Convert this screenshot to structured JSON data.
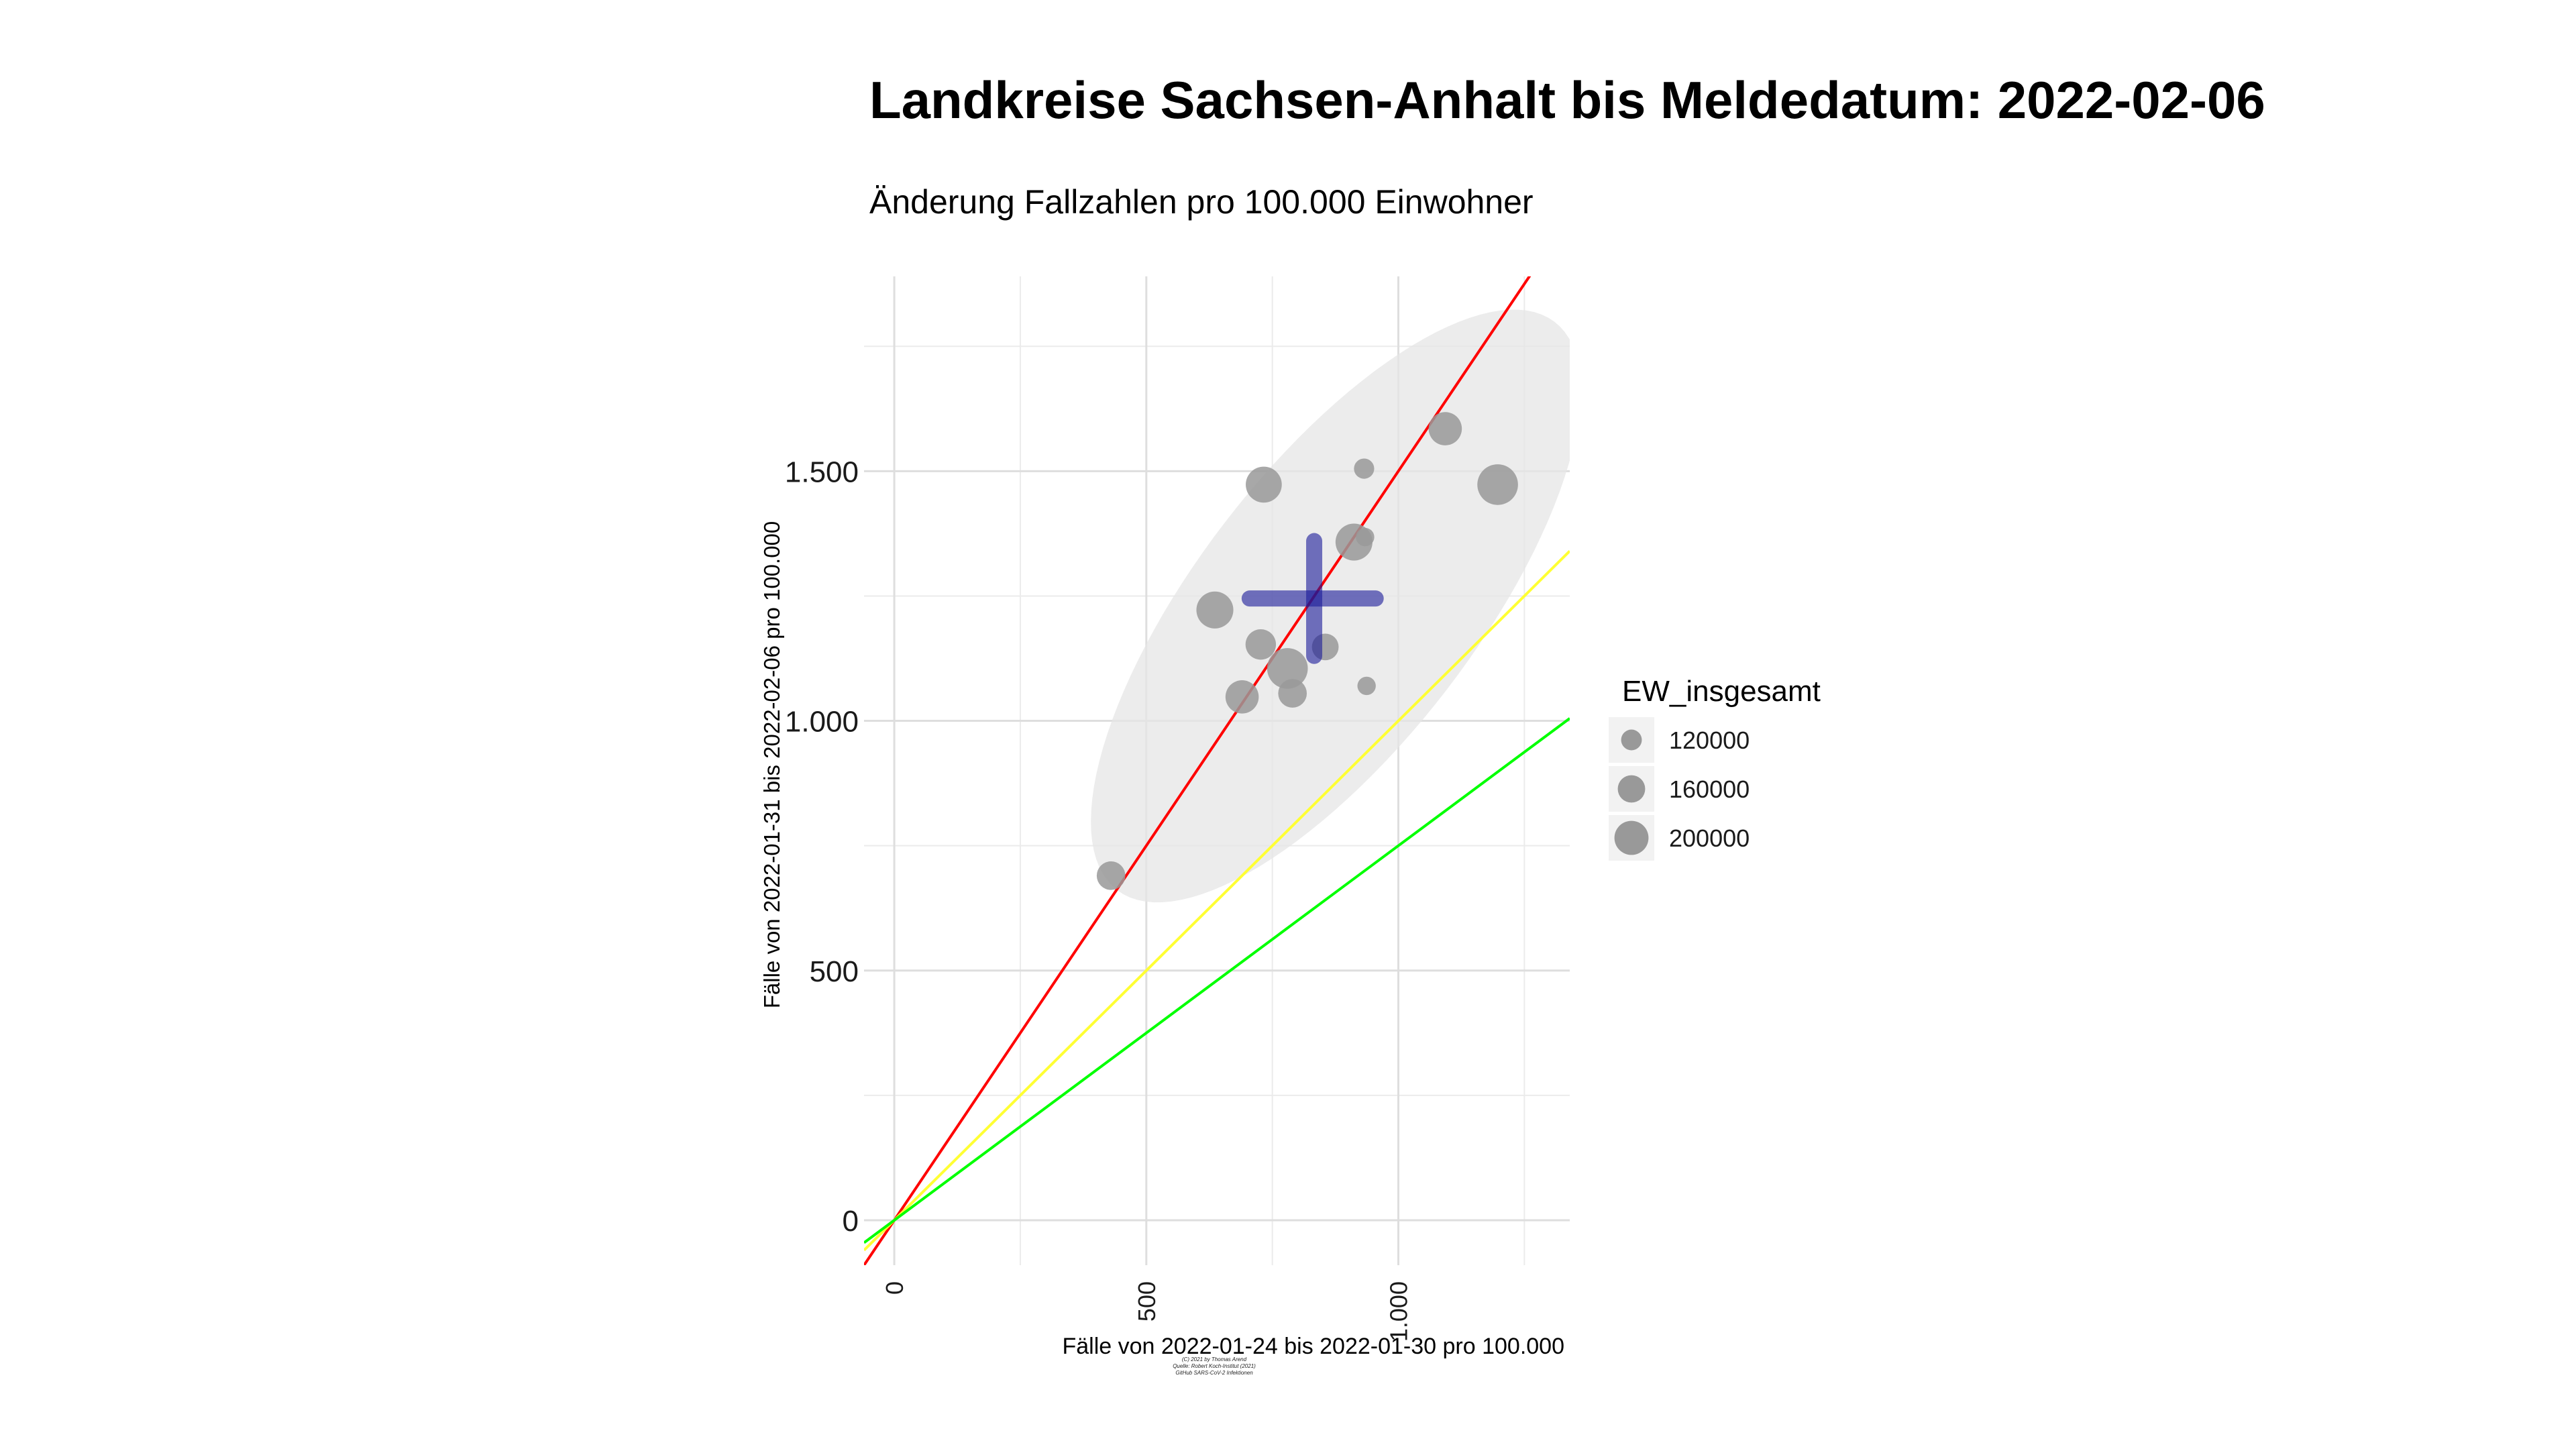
{
  "chart_data": {
    "type": "scatter",
    "title": "Landkreise Sachsen-Anhalt bis Meldedatum: 2022-02-06",
    "subtitle": "Änderung Fallzahlen pro 100.000 Einwohner",
    "xlabel": "Fälle von 2022-01-24 bis 2022-01-30 pro 100.000",
    "ylabel": "Fälle von 2022-01-31 bis 2022-02-06 pro 100.000",
    "xlim": [
      -60,
      1340
    ],
    "ylim": [
      -90,
      1890
    ],
    "x_ticks": [
      {
        "value": 0,
        "label": "0"
      },
      {
        "value": 500,
        "label": "500"
      },
      {
        "value": 1000,
        "label": "1.000"
      }
    ],
    "y_ticks": [
      {
        "value": 0,
        "label": "0"
      },
      {
        "value": 500,
        "label": "500"
      },
      {
        "value": 1000,
        "label": "1.000"
      },
      {
        "value": 1500,
        "label": "1.500"
      }
    ],
    "grid": true,
    "points": [
      {
        "x": 430,
        "y": 690,
        "ew": 150000
      },
      {
        "x": 636,
        "y": 1222,
        "ew": 195000
      },
      {
        "x": 690,
        "y": 1048,
        "ew": 175000
      },
      {
        "x": 727,
        "y": 1153,
        "ew": 160000
      },
      {
        "x": 733,
        "y": 1473,
        "ew": 190000
      },
      {
        "x": 780,
        "y": 1105,
        "ew": 215000
      },
      {
        "x": 790,
        "y": 1055,
        "ew": 150000
      },
      {
        "x": 855,
        "y": 1148,
        "ew": 140000
      },
      {
        "x": 912,
        "y": 1358,
        "ew": 195000
      },
      {
        "x": 934,
        "y": 1368,
        "ew": 95000
      },
      {
        "x": 932,
        "y": 1505,
        "ew": 105000
      },
      {
        "x": 937,
        "y": 1070,
        "ew": 95000
      },
      {
        "x": 1093,
        "y": 1585,
        "ew": 175000
      },
      {
        "x": 1197,
        "y": 1473,
        "ew": 215000
      }
    ],
    "mean_cross": {
      "x": 833,
      "y": 1245,
      "x_range": [
        705,
        955
      ],
      "y_range": [
        1130,
        1360
      ],
      "color": "#1A1A99"
    },
    "ellipse": {
      "center_x": 876,
      "center_y": 1230,
      "color": "#E5E5E5"
    },
    "reference_lines": [
      {
        "slope": 1.5,
        "color": "#FF0000"
      },
      {
        "slope": 1.0,
        "color": "#FFFF33"
      },
      {
        "slope": 0.75,
        "color": "#00FF00"
      }
    ],
    "point_color": "#999999",
    "legend": {
      "title": "EW_insgesamt",
      "placement": "right",
      "entries": [
        {
          "label": "120000",
          "value": 120000
        },
        {
          "label": "160000",
          "value": 160000
        },
        {
          "label": "200000",
          "value": 200000
        }
      ]
    },
    "caption": [
      "(C) 2021 by Thomas Arend",
      "Quelle: Robert Koch-Institut (2021)",
      "GitHub SARS-CoV-2 Infektionen"
    ]
  }
}
